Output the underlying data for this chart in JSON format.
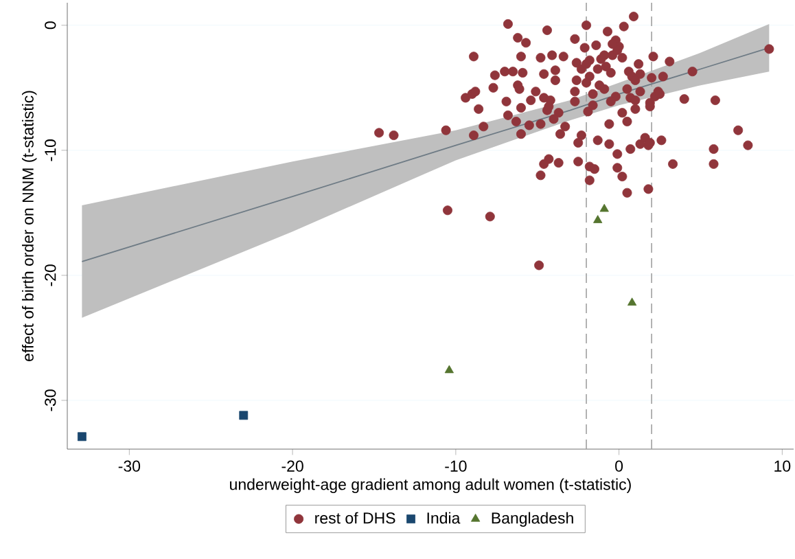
{
  "chart_data": {
    "type": "scatter",
    "xlabel": "underweight-age gradient among adult women (t-statistic)",
    "ylabel": "effect of birth order on NNM (t-statistic)",
    "xlim": [
      -33.8,
      10.7
    ],
    "ylim": [
      -33.9,
      1.8
    ],
    "xticks": [
      -30,
      -20,
      -10,
      0,
      10
    ],
    "yticks": [
      -30,
      -20,
      -10,
      0
    ],
    "grid": "y",
    "legend": "bottom",
    "ref_lines": [
      {
        "axis": "x",
        "value": -2,
        "color": "#a0a0a0",
        "line_style": "dashed"
      },
      {
        "axis": "x",
        "value": 2,
        "color": "#a0a0a0",
        "line_style": "dashed"
      }
    ],
    "series": [
      {
        "type": "line",
        "color": "#6e7b85",
        "marker": "none",
        "line_style": "solid",
        "x": [
          -32.9,
          -20,
          -10,
          -3,
          0,
          5,
          9.2
        ],
        "values": [
          -18.9,
          -13.7,
          -9.6,
          -6.8,
          -5.5,
          -3.5,
          -1.8
        ],
        "lower": [
          -23.4,
          -16.5,
          -10.8,
          -7.6,
          -6.4,
          -4.8,
          -3.7
        ],
        "upper": [
          -14.4,
          -10.9,
          -8.4,
          -6.0,
          -4.6,
          -2.2,
          0.1
        ]
      },
      {
        "name": "rest of DHS",
        "color": "#90353b",
        "marker": "circle",
        "x": [
          -6.8,
          -4.4,
          -2.0,
          0.9,
          0.3,
          -0.7,
          -2.7,
          -6.2,
          -5.7,
          -8.9,
          -6.0,
          -4.8,
          -4.1,
          -3.4,
          -2.1,
          -1.4,
          -0.2,
          0.0,
          2.1,
          3.1,
          9.2,
          4.5,
          -7.6,
          -7.0,
          -6.5,
          -5.9,
          -4.6,
          -3.9,
          -2.6,
          -1.8,
          -1.1,
          -0.4,
          0.2,
          1.2,
          0.6,
          1.3,
          -0.5,
          -1.8,
          -2.6,
          -2.3,
          2.7,
          2.0,
          -7.7,
          -6.2,
          -6.1,
          -5.1,
          -3.9,
          -1.2,
          -0.9,
          0.5,
          1.3,
          2.4,
          -9.4,
          -9.0,
          -8.8,
          -6.9,
          -5.4,
          -4.6,
          -4.2,
          -2.7,
          -1.6,
          -0.2,
          -0.5,
          0.7,
          1.0,
          1.9,
          2.2,
          2.5,
          4.0,
          5.9,
          -8.6,
          -6.8,
          -6.0,
          -4.4,
          -4.3,
          -3.7,
          -2.7,
          -1.9,
          -1.6,
          0.2,
          1.0,
          1.9,
          -10.6,
          -8.3,
          -8.9,
          -6.3,
          -5.5,
          -4.8,
          -4.0,
          -3.3,
          -3.6,
          -6.0,
          -0.6,
          0.5,
          -2.3,
          -2.5,
          -1.3,
          -0.6,
          -0.1,
          0.7,
          1.3,
          1.6,
          1.8,
          1.9,
          2.6,
          3.3,
          5.8,
          5.8,
          7.3,
          7.9,
          -4.3,
          -4.6,
          -4.8,
          -3.7,
          -2.5,
          -1.8,
          -1.5,
          -1.8,
          -0.1,
          0.2,
          0.5,
          1.8,
          -10.5,
          -7.9,
          -14.7,
          -13.8,
          -4.9,
          -2.0,
          -0.9,
          -0.1,
          -0.4,
          -1.3,
          -0.8,
          0.8,
          1.0,
          -2.0
        ],
        "values": [
          0.1,
          -0.4,
          0.0,
          0.7,
          -0.1,
          -0.5,
          -1.1,
          -1.0,
          -1.4,
          -2.5,
          -2.5,
          -2.6,
          -2.4,
          -2.5,
          -1.8,
          -1.6,
          -1.2,
          -1.7,
          -2.5,
          -2.9,
          -1.9,
          -3.7,
          -4.0,
          -3.7,
          -3.7,
          -3.8,
          -3.9,
          -3.6,
          -3.0,
          -2.8,
          -2.7,
          -2.4,
          -2.6,
          -3.1,
          -3.7,
          -3.9,
          -3.8,
          -4.1,
          -4.4,
          -3.5,
          -4.1,
          -4.2,
          -5.0,
          -4.8,
          -5.1,
          -5.3,
          -4.4,
          -4.8,
          -5.1,
          -5.1,
          -5.3,
          -5.3,
          -5.8,
          -5.5,
          -5.3,
          -6.1,
          -6.0,
          -5.8,
          -6.0,
          -5.3,
          -5.5,
          -5.7,
          -6.1,
          -5.8,
          -6.0,
          -6.2,
          -5.7,
          -5.5,
          -5.9,
          -6.0,
          -6.7,
          -7.2,
          -6.6,
          -6.8,
          -6.5,
          -7.0,
          -6.1,
          -6.9,
          -6.4,
          -7.0,
          -6.7,
          -6.5,
          -8.4,
          -8.1,
          -8.8,
          -7.7,
          -8.0,
          -7.9,
          -7.5,
          -8.1,
          -8.7,
          -8.7,
          -7.9,
          -7.7,
          -8.8,
          -9.4,
          -9.2,
          -9.5,
          -10.3,
          -9.9,
          -9.5,
          -9.0,
          -9.6,
          -9.4,
          -9.2,
          -11.1,
          -9.9,
          -11.1,
          -8.4,
          -9.6,
          -10.7,
          -11.1,
          -12.0,
          -11.0,
          -10.9,
          -11.3,
          -11.5,
          -12.4,
          -11.4,
          -12.1,
          -13.4,
          -13.1,
          -14.8,
          -15.3,
          -8.6,
          -8.8,
          -19.2,
          -3.1,
          -2.4,
          -2.0,
          -1.5,
          -3.5,
          -3.3,
          -4.1,
          -4.4,
          -4.6
        ]
      },
      {
        "name": "India",
        "color": "#1a476f",
        "marker": "square",
        "x": [
          -32.9,
          -23.0
        ],
        "values": [
          -32.9,
          -31.2
        ]
      },
      {
        "name": "Bangladesh",
        "color": "#55752f",
        "marker": "triangle",
        "x": [
          -0.9,
          -1.3,
          0.8,
          -10.4
        ],
        "values": [
          -14.7,
          -15.6,
          -22.2,
          -27.6
        ]
      }
    ]
  }
}
